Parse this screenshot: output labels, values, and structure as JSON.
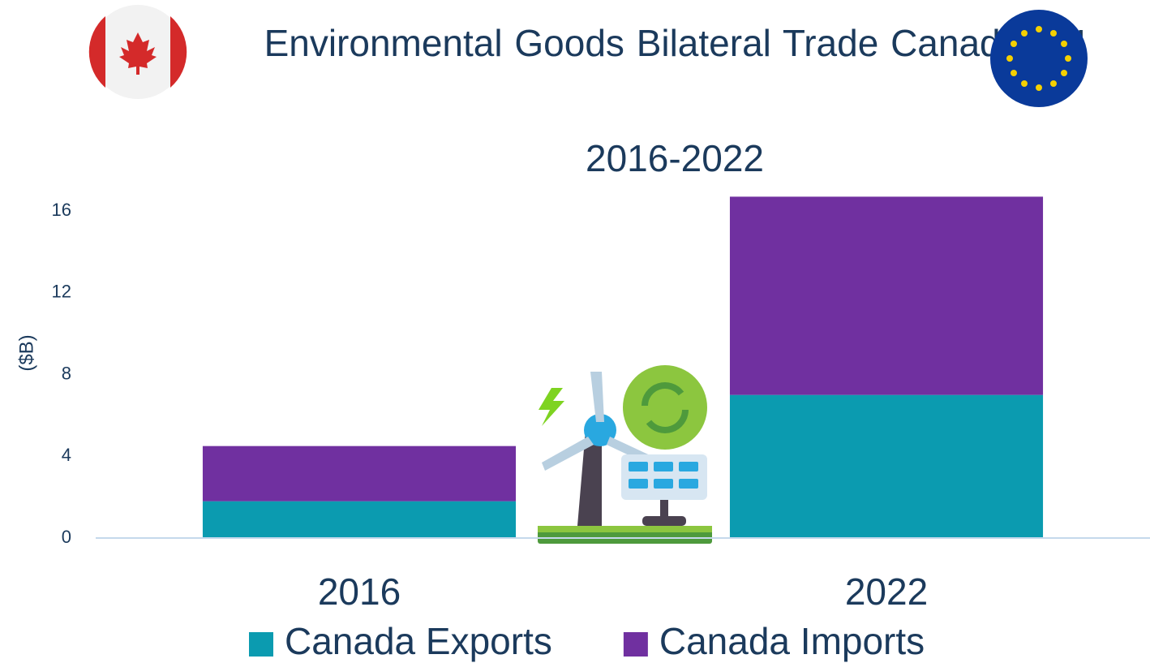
{
  "chart_data": {
    "type": "stacked_bar",
    "title": "Environmental Goods Bilateral Trade Canada-EU",
    "subtitle": "2016-2022",
    "y_label": "($B)",
    "categories": [
      "2016",
      "2022"
    ],
    "series": [
      {
        "name": "Canada Exports",
        "color": "#0b9bb0",
        "values": [
          1.8,
          7.0
        ]
      },
      {
        "name": "Canada Imports",
        "color": "#7030a0",
        "values": [
          2.7,
          9.7
        ]
      }
    ],
    "ylim": [
      0,
      17
    ],
    "yticks": [
      0,
      4,
      8,
      12,
      16
    ],
    "grid": false
  }
}
